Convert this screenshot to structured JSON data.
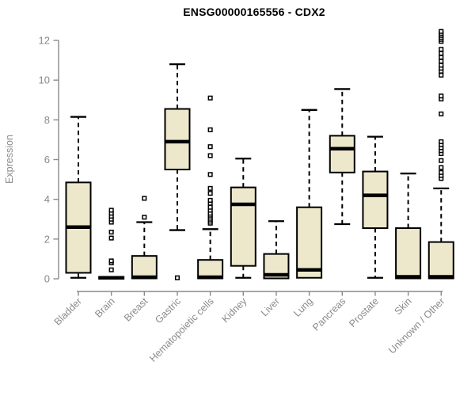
{
  "chart_data": {
    "type": "boxplot",
    "title": "ENSG00000165556 - CDX2",
    "ylabel": "Expression",
    "xlabel": "",
    "ylim": [
      0,
      12
    ],
    "yticks": [
      0,
      2,
      4,
      6,
      8,
      10,
      12
    ],
    "grid": false,
    "legend": "none",
    "colors": {
      "box_fill": "#ede8cc",
      "box_border": "#000000",
      "median": "#000000",
      "whisker": "#000000",
      "axis": "#8a8a8a",
      "title": "#000000",
      "background": "#ffffff"
    },
    "categories": [
      "Bladder",
      "Brain",
      "Breast",
      "Gastric",
      "Hematopoietic cells",
      "Kidney",
      "Liver",
      "Lung",
      "Pancreas",
      "Prostate",
      "Skin",
      "Unknown / Other"
    ],
    "series": [
      {
        "category": "Bladder",
        "whisker_low": 0.05,
        "q1": 0.3,
        "median": 2.6,
        "q3": 4.85,
        "whisker_high": 8.15,
        "outliers": []
      },
      {
        "category": "Brain",
        "whisker_low": 0.0,
        "q1": 0.0,
        "median": 0.05,
        "q3": 0.1,
        "whisker_high": 0.15,
        "outliers": [
          0.45,
          0.8,
          0.9,
          2.05,
          2.35,
          2.85,
          3.0,
          3.15,
          3.3,
          3.45
        ]
      },
      {
        "category": "Breast",
        "whisker_low": 0.0,
        "q1": 0.02,
        "median": 0.08,
        "q3": 1.15,
        "whisker_high": 2.85,
        "outliers": [
          3.1,
          4.05
        ]
      },
      {
        "category": "Gastric",
        "whisker_low": 2.45,
        "q1": 5.5,
        "median": 6.9,
        "q3": 8.55,
        "whisker_high": 10.8,
        "outliers": [
          0.05
        ]
      },
      {
        "category": "Hematopoietic cells",
        "whisker_low": 0.0,
        "q1": 0.02,
        "median": 0.08,
        "q3": 0.95,
        "whisker_high": 2.5,
        "outliers": [
          2.8,
          2.9,
          3.0,
          3.1,
          3.2,
          3.3,
          3.45,
          3.6,
          3.8,
          3.95,
          4.3,
          4.55,
          5.25,
          6.2,
          6.65,
          7.5,
          9.1
        ]
      },
      {
        "category": "Kidney",
        "whisker_low": 0.05,
        "q1": 0.65,
        "median": 3.75,
        "q3": 4.6,
        "whisker_high": 6.05,
        "outliers": []
      },
      {
        "category": "Liver",
        "whisker_low": 0.0,
        "q1": 0.02,
        "median": 0.2,
        "q3": 1.25,
        "whisker_high": 2.9,
        "outliers": []
      },
      {
        "category": "Lung",
        "whisker_low": 0.0,
        "q1": 0.05,
        "median": 0.45,
        "q3": 3.6,
        "whisker_high": 8.5,
        "outliers": []
      },
      {
        "category": "Pancreas",
        "whisker_low": 2.75,
        "q1": 5.35,
        "median": 6.55,
        "q3": 7.2,
        "whisker_high": 9.55,
        "outliers": []
      },
      {
        "category": "Prostate",
        "whisker_low": 0.05,
        "q1": 2.55,
        "median": 4.2,
        "q3": 5.4,
        "whisker_high": 7.15,
        "outliers": []
      },
      {
        "category": "Skin",
        "whisker_low": 0.0,
        "q1": 0.02,
        "median": 0.1,
        "q3": 2.55,
        "whisker_high": 5.3,
        "outliers": []
      },
      {
        "category": "Unknown / Other",
        "whisker_low": 0.0,
        "q1": 0.02,
        "median": 0.1,
        "q3": 1.85,
        "whisker_high": 4.55,
        "outliers": [
          5.05,
          5.2,
          5.35,
          5.6,
          5.95,
          6.3,
          6.45,
          6.6,
          6.75,
          6.9,
          8.3,
          9.05,
          9.2,
          10.25,
          10.45,
          10.6,
          10.75,
          10.95,
          11.15,
          11.35,
          11.55,
          11.95,
          12.05,
          12.15,
          12.25,
          12.35,
          12.45
        ]
      }
    ]
  }
}
